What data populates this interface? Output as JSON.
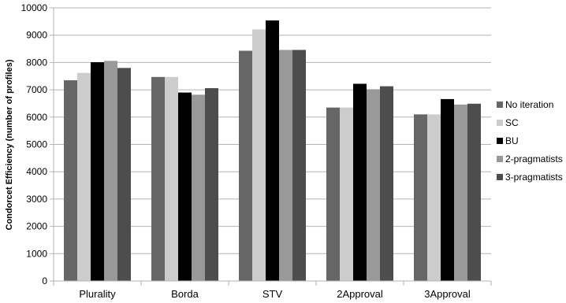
{
  "chart_data": {
    "type": "bar",
    "title": "",
    "xlabel": "",
    "ylabel": "Condorcet Efficiency (number of profiles)",
    "ylim": [
      0,
      10000
    ],
    "yticks": [
      0,
      1000,
      2000,
      3000,
      4000,
      5000,
      6000,
      7000,
      8000,
      9000,
      10000
    ],
    "grid": true,
    "legend_position": "right",
    "categories": [
      "Plurality",
      "Borda",
      "STV",
      "2Approval",
      "3Approval"
    ],
    "series": [
      {
        "name": "No iteration",
        "color": "#666666",
        "values": [
          7350,
          7470,
          8430,
          6350,
          6100
        ]
      },
      {
        "name": "SC",
        "color": "#cccccc",
        "values": [
          7620,
          7470,
          9210,
          6350,
          6100
        ]
      },
      {
        "name": "BU",
        "color": "#000000",
        "values": [
          8010,
          6900,
          9540,
          7220,
          6660
        ]
      },
      {
        "name": "2-pragmatists",
        "color": "#999999",
        "values": [
          8060,
          6820,
          8460,
          7020,
          6460
        ]
      },
      {
        "name": "3-pragmatists",
        "color": "#4d4d4d",
        "values": [
          7800,
          7060,
          8460,
          7130,
          6490
        ]
      }
    ]
  }
}
